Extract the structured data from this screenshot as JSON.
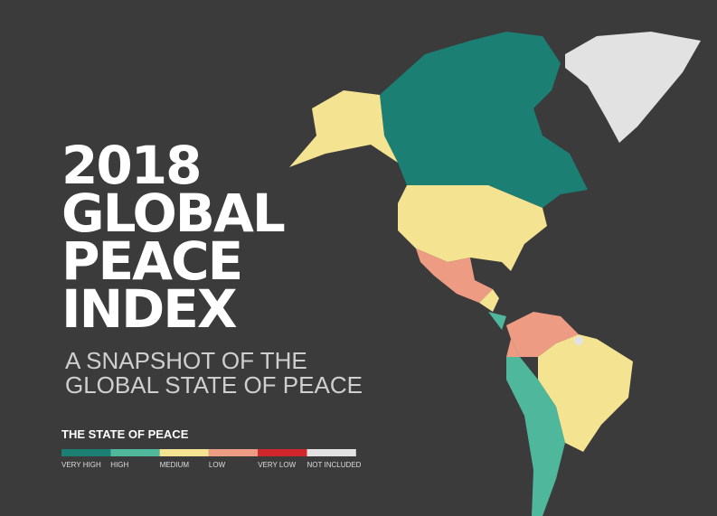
{
  "title": {
    "lines": [
      "2018",
      "GLOBAL",
      "PEACE",
      "INDEX"
    ]
  },
  "subtitle": {
    "lines": [
      "A SNAPSHOT OF THE",
      "GLOBAL STATE OF PEACE"
    ]
  },
  "legend": {
    "title": "THE STATE OF PEACE",
    "items": [
      {
        "label": "VERY HIGH",
        "color": "#1b7f73"
      },
      {
        "label": "HIGH",
        "color": "#4fb89c"
      },
      {
        "label": "MEDIUM",
        "color": "#f4e391"
      },
      {
        "label": "LOW",
        "color": "#ed9b82"
      },
      {
        "label": "VERY LOW",
        "color": "#d2262d"
      },
      {
        "label": "NOT INCLUDED",
        "color": "#e2e2e2"
      }
    ]
  }
}
